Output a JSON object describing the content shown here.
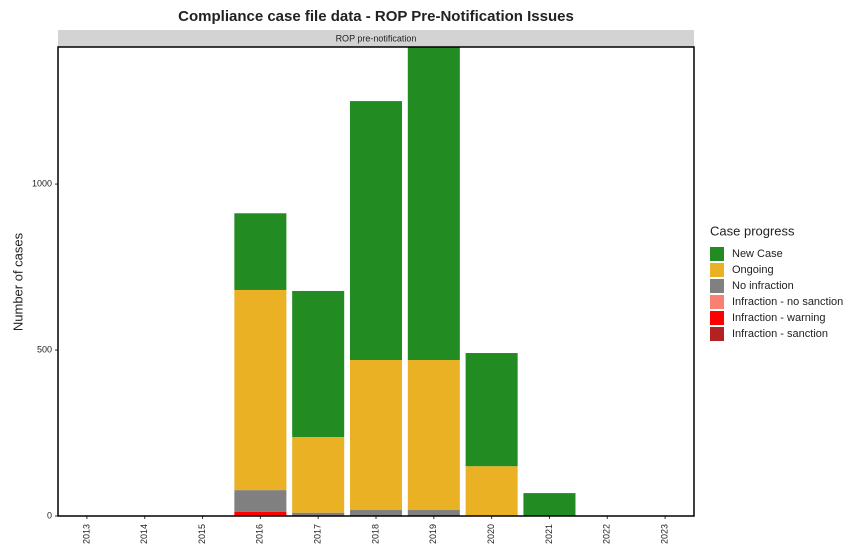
{
  "chart_data": {
    "type": "stacked-bar",
    "title": "Compliance case file data -  ROP Pre-Notification Issues",
    "facet_label": "ROP pre-notification",
    "y_label": "Number of cases",
    "legend_title": "Case progress",
    "categories": [
      "2013",
      "2014",
      "2015",
      "2016",
      "2017",
      "2018",
      "2019",
      "2020",
      "2021",
      "2022",
      "2023"
    ],
    "series": [
      {
        "name": "Infraction - sanction",
        "color": "#b22222",
        "values": [
          0,
          0,
          0,
          3,
          0,
          0,
          0,
          0,
          0,
          0,
          0
        ]
      },
      {
        "name": "Infraction - warning",
        "color": "#ff0000",
        "values": [
          0,
          0,
          0,
          10,
          0,
          0,
          0,
          0,
          0,
          0,
          0
        ]
      },
      {
        "name": "Infraction - no sanction",
        "color": "#fa8072",
        "values": [
          0,
          0,
          0,
          0,
          0,
          0,
          0,
          0,
          0,
          0,
          0
        ]
      },
      {
        "name": "No infraction",
        "color": "#808080",
        "values": [
          0,
          0,
          0,
          65,
          10,
          18,
          18,
          0,
          0,
          0,
          0
        ]
      },
      {
        "name": "Ongoing",
        "color": "#ebb125",
        "values": [
          0,
          0,
          0,
          603,
          228,
          452,
          452,
          150,
          0,
          0,
          0
        ]
      },
      {
        "name": "New Case",
        "color": "#228b22",
        "values": [
          0,
          0,
          0,
          231,
          440,
          780,
          943,
          341,
          69,
          0,
          0
        ]
      }
    ],
    "ylim": [
      0,
      1413
    ],
    "yticks": [
      0,
      500,
      1000
    ],
    "grid": false
  }
}
